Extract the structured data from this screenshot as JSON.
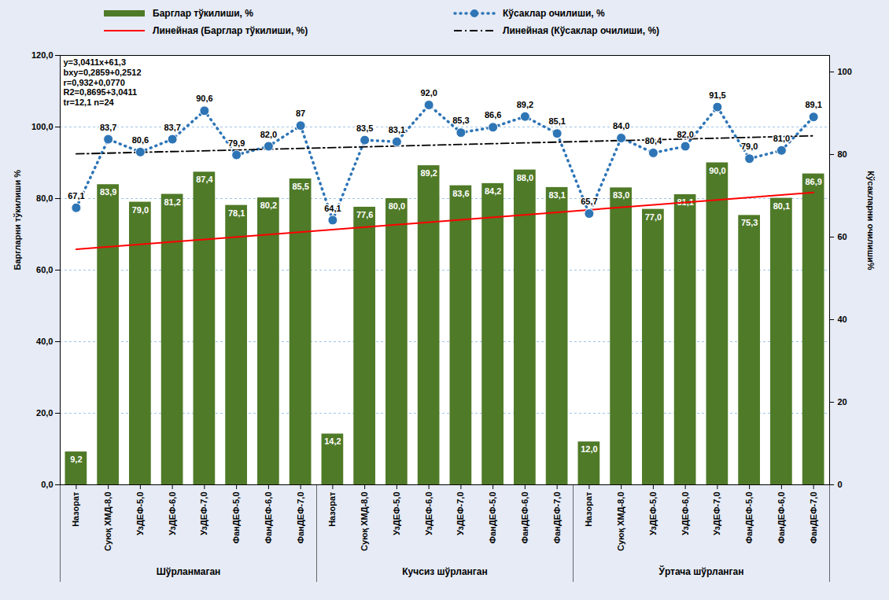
{
  "chart_data": {
    "type": "bar",
    "categories": [
      "Назорат",
      "Суюқ ХМД-8,0",
      "УзДЕФ-5,0",
      "УзДЕФ-6,0",
      "УзДЕФ-7,0",
      "ФанДЕФ-5,0",
      "ФанДЕФ-6,0",
      "ФанДЕФ-7,0",
      "Назорат",
      "Суюқ ХМД-8,0",
      "УзДЕФ-5,0",
      "УзДЕФ-6,0",
      "УзДЕФ-7,0",
      "ФанДЕФ-5,0",
      "ФанДЕФ-6,0",
      "ФанДЕФ-7,0",
      "Назорат",
      "Суюқ ХМД-8,0",
      "УзДЕФ-5,0",
      "УзДЕФ-6,0",
      "УзДЕФ-7,0",
      "ФанДЕФ-5,0",
      "ФанДЕФ-6,0",
      "ФанДЕФ-7,0"
    ],
    "groups": [
      "Шўрланмаган",
      "Шўрланмаган",
      "Шўрланмаган",
      "Шўрланмаган",
      "Шўрланмаган",
      "Шўрланмаган",
      "Шўрланмаган",
      "Шўрланмаган",
      "Кучсиз шўрланган",
      "Кучсиз шўрланган",
      "Кучсиз шўрланган",
      "Кучсиз шўрланган",
      "Кучсиз шўрланган",
      "Кучсиз шўрланган",
      "Кучсиз шўрланган",
      "Кучсиз шўрланган",
      "Ўртача шўрланган",
      "Ўртача шўрланган",
      "Ўртача шўрланган",
      "Ўртача шўрланган",
      "Ўртача шўрланган",
      "Ўртача шўрланган",
      "Ўртача шўрланган",
      "Ўртача шўрланган"
    ],
    "annotations": [
      "y=3,0411x+61,3",
      "bxy=0,2859+0,2512",
      "r=0,932+0,0770",
      "R2=0,8695+3,0411",
      "tr=12,1 n=24"
    ],
    "y_label": "Баргларни тўкилиши %",
    "y2_label": "Кўсакларни очилиши%",
    "ylim": [
      0,
      120
    ],
    "yticks": [
      {
        "value": 0,
        "label": "0,0"
      },
      {
        "value": 20,
        "label": "20,0"
      },
      {
        "value": 40,
        "label": "40,0"
      },
      {
        "value": 60,
        "label": "60,0"
      },
      {
        "value": 80,
        "label": "80,0"
      },
      {
        "value": 100,
        "label": "100,0"
      },
      {
        "value": 120,
        "label": "120,0"
      }
    ],
    "y2lim": [
      0,
      104
    ],
    "y2ticks": [
      0,
      20,
      40,
      60,
      80,
      100
    ],
    "grid": true,
    "data_labels": true,
    "legend": "top",
    "series": [
      {
        "name": "Барглар тўкилиши, %",
        "type": "bar",
        "color": "#4f7a28",
        "values": [
          9.2,
          83.9,
          79.0,
          81.2,
          87.4,
          78.1,
          80.2,
          85.5,
          14.2,
          77.6,
          80.0,
          89.2,
          83.6,
          84.2,
          88.0,
          83.1,
          12.0,
          83.0,
          77.0,
          81.1,
          90.0,
          75.3,
          80.1,
          86.9
        ],
        "value_labels": [
          "9,2",
          "83,9",
          "79,0",
          "81,2",
          "87,4",
          "78,1",
          "80,2",
          "85,5",
          "14,2",
          "77,6",
          "80,0",
          "89,2",
          "83,6",
          "84,2",
          "88,0",
          "83,1",
          "12,0",
          "83,0",
          "77,0",
          "81,1",
          "90,0",
          "75,3",
          "80,1",
          "86,9"
        ]
      },
      {
        "name": "Кўсаклар очилиши, %",
        "type": "line",
        "axis": "y2",
        "color": "#2e75b6",
        "marker": "circle",
        "line_style": "dotted",
        "values": [
          67.1,
          83.7,
          80.6,
          83.7,
          90.6,
          79.9,
          82.0,
          87,
          64.1,
          83.5,
          83.1,
          92.0,
          85.3,
          86.6,
          89.2,
          85.1,
          65.7,
          84.0,
          80.4,
          82.0,
          91.5,
          79.0,
          81.0,
          89.1
        ],
        "value_labels": [
          "67,1",
          "83,7",
          "80,6",
          "83,7",
          "90,6",
          "79,9",
          "82,0",
          "87",
          "64,1",
          "83,5",
          "83,1",
          "92,0",
          "85,3",
          "86,6",
          "89,2",
          "85,1",
          "65,7",
          "84,0",
          "80,4",
          "82,0",
          "91,5",
          "79,0",
          "81,0",
          "89,1"
        ]
      }
    ],
    "trendlines": [
      {
        "name": "Линейная (Барглар тўкилиши, %)",
        "of": "Барглар тўкилиши, %",
        "color": "#ff0000",
        "line_style": "solid"
      },
      {
        "name": "Линейная (Кўсаклар очилиши, %)",
        "of": "Кўсаклар очилиши, %",
        "color": "#000000",
        "line_style": "dashdot"
      }
    ]
  }
}
